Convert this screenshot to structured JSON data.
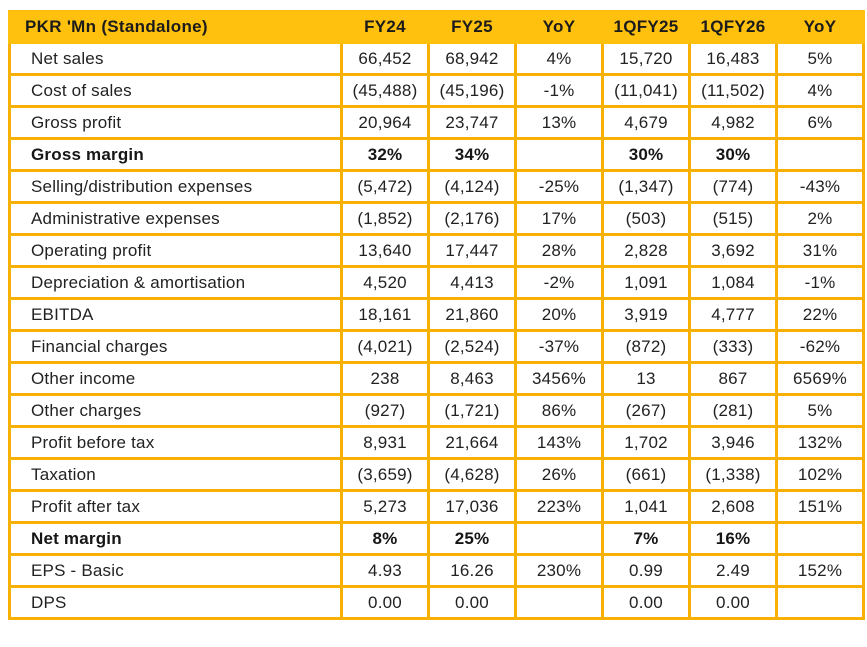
{
  "chart_data": {
    "type": "table",
    "title": "PKR 'Mn (Standalone)",
    "columns": [
      "FY24",
      "FY25",
      "YoY",
      "1QFY25",
      "1QFY26",
      "YoY"
    ],
    "rows": [
      {
        "label": "Net sales",
        "bold": false,
        "values": [
          "66,452",
          "68,942",
          "4%",
          "15,720",
          "16,483",
          "5%"
        ]
      },
      {
        "label": "Cost of sales",
        "bold": false,
        "values": [
          "(45,488)",
          "(45,196)",
          "-1%",
          "(11,041)",
          "(11,502)",
          "4%"
        ]
      },
      {
        "label": "Gross profit",
        "bold": false,
        "values": [
          "20,964",
          "23,747",
          "13%",
          "4,679",
          "4,982",
          "6%"
        ]
      },
      {
        "label": "Gross margin",
        "bold": true,
        "values": [
          "32%",
          "34%",
          "",
          "30%",
          "30%",
          ""
        ]
      },
      {
        "label": "Selling/distribution expenses",
        "bold": false,
        "values": [
          "(5,472)",
          "(4,124)",
          "-25%",
          "(1,347)",
          "(774)",
          "-43%"
        ]
      },
      {
        "label": "Administrative expenses",
        "bold": false,
        "values": [
          "(1,852)",
          "(2,176)",
          "17%",
          "(503)",
          "(515)",
          "2%"
        ]
      },
      {
        "label": "Operating profit",
        "bold": false,
        "values": [
          "13,640",
          "17,447",
          "28%",
          "2,828",
          "3,692",
          "31%"
        ]
      },
      {
        "label": "Depreciation & amortisation",
        "bold": false,
        "values": [
          "4,520",
          "4,413",
          "-2%",
          "1,091",
          "1,084",
          "-1%"
        ]
      },
      {
        "label": "EBITDA",
        "bold": false,
        "values": [
          "18,161",
          "21,860",
          "20%",
          "3,919",
          "4,777",
          "22%"
        ]
      },
      {
        "label": "Financial charges",
        "bold": false,
        "values": [
          "(4,021)",
          "(2,524)",
          "-37%",
          "(872)",
          "(333)",
          "-62%"
        ]
      },
      {
        "label": "Other income",
        "bold": false,
        "values": [
          "238",
          "8,463",
          "3456%",
          "13",
          "867",
          "6569%"
        ]
      },
      {
        "label": "Other charges",
        "bold": false,
        "values": [
          "(927)",
          "(1,721)",
          "86%",
          "(267)",
          "(281)",
          "5%"
        ]
      },
      {
        "label": "Profit before tax",
        "bold": false,
        "values": [
          "8,931",
          "21,664",
          "143%",
          "1,702",
          "3,946",
          "132%"
        ]
      },
      {
        "label": "Taxation",
        "bold": false,
        "values": [
          "(3,659)",
          "(4,628)",
          "26%",
          "(661)",
          "(1,338)",
          "102%"
        ]
      },
      {
        "label": "Profit after tax",
        "bold": false,
        "values": [
          "5,273",
          "17,036",
          "223%",
          "1,041",
          "2,608",
          "151%"
        ]
      },
      {
        "label": "Net margin",
        "bold": true,
        "values": [
          "8%",
          "25%",
          "",
          "7%",
          "16%",
          ""
        ]
      },
      {
        "label": "EPS - Basic",
        "bold": false,
        "values": [
          "4.93",
          "16.26",
          "230%",
          "0.99",
          "2.49",
          "152%"
        ]
      },
      {
        "label": "DPS",
        "bold": false,
        "values": [
          "0.00",
          "0.00",
          "",
          "0.00",
          "0.00",
          ""
        ]
      }
    ],
    "layout": {
      "header_position": "top",
      "grid": true
    },
    "colors": {
      "header_bg": "#FFC10E",
      "border": "#F9B004",
      "header_text": "#1B1B1B",
      "body_text": "#222222",
      "row_bg": "#FFFFFF"
    }
  }
}
